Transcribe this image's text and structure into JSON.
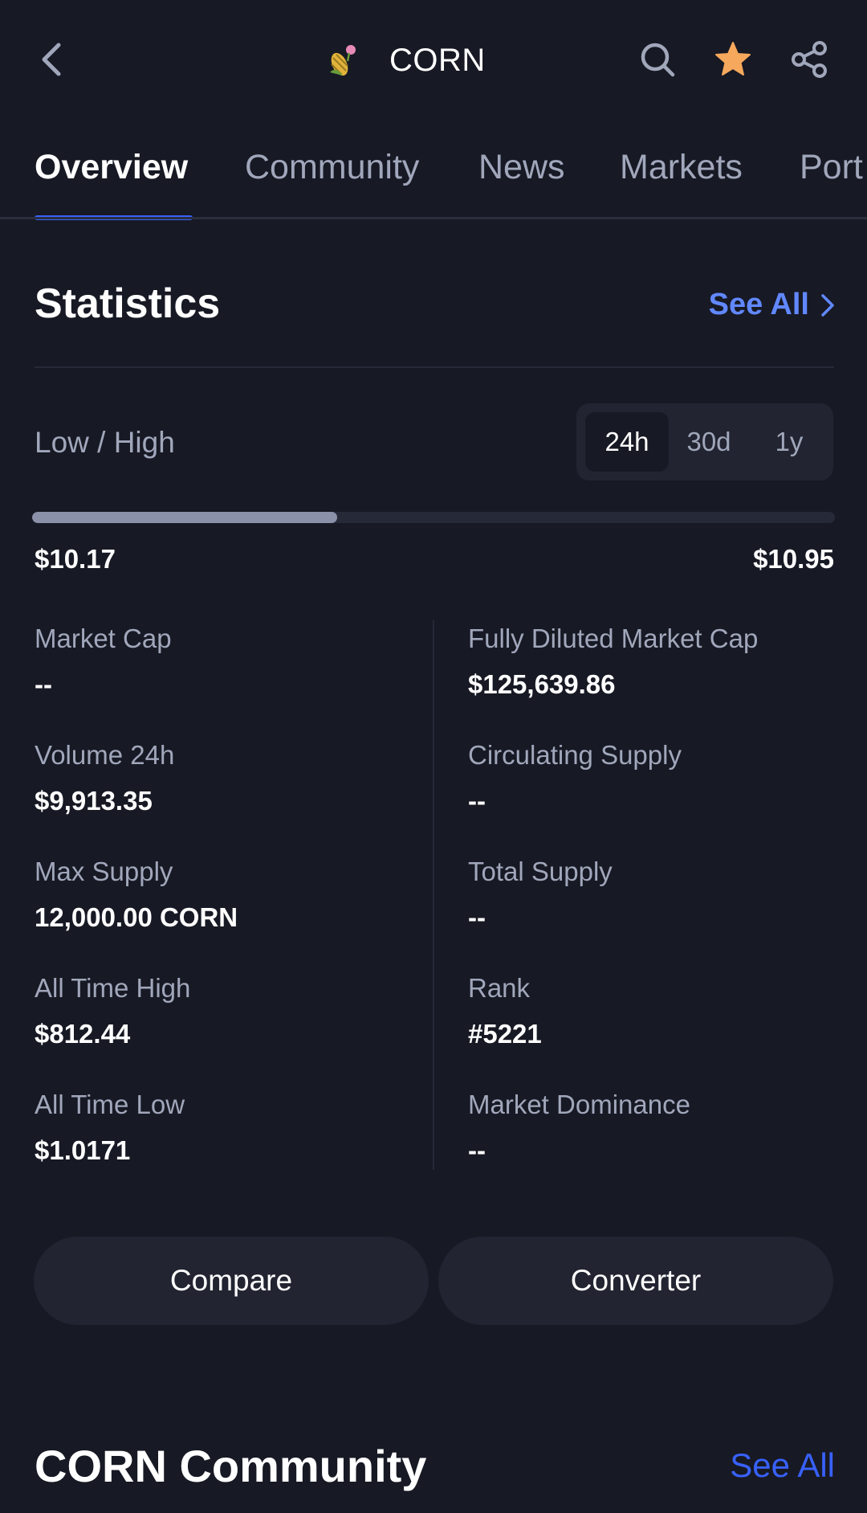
{
  "header": {
    "title": "CORN",
    "back_icon": "chevron-left-icon",
    "logo_icon": "corn-logo-icon",
    "search_icon": "search-icon",
    "favorite_icon": "star-icon",
    "share_icon": "share-icon",
    "favorite_color": "#f6a85c"
  },
  "tabs": [
    {
      "label": "Overview",
      "active": true
    },
    {
      "label": "Community",
      "active": false
    },
    {
      "label": "News",
      "active": false
    },
    {
      "label": "Markets",
      "active": false
    },
    {
      "label": "Port",
      "active": false
    }
  ],
  "statistics": {
    "title": "Statistics",
    "see_all_label": "See All",
    "low_high_label": "Low / High",
    "ranges": [
      {
        "label": "24h",
        "active": true
      },
      {
        "label": "30d",
        "active": false
      },
      {
        "label": "1y",
        "active": false
      }
    ],
    "low": "$10.17",
    "high": "$10.95",
    "range_progress": 0.38,
    "left_column": [
      {
        "label": "Market Cap",
        "value": "--"
      },
      {
        "label": "Volume 24h",
        "value": "$9,913.35"
      },
      {
        "label": "Max Supply",
        "value": "12,000.00 CORN"
      },
      {
        "label": "All Time High",
        "value": "$812.44"
      },
      {
        "label": "All Time Low",
        "value": "$1.0171"
      }
    ],
    "right_column": [
      {
        "label": "Fully Diluted Market Cap",
        "value": "$125,639.86"
      },
      {
        "label": "Circulating Supply",
        "value": "--"
      },
      {
        "label": "Total Supply",
        "value": "--"
      },
      {
        "label": "Rank",
        "value": "#5221"
      },
      {
        "label": "Market Dominance",
        "value": "--"
      }
    ]
  },
  "actions": {
    "compare_label": "Compare",
    "converter_label": "Converter"
  },
  "community": {
    "title": "CORN Community",
    "see_all_label": "See All"
  },
  "colors": {
    "background": "#171924",
    "accent": "#3861fb",
    "see_all_blue": "#6188ff",
    "muted_text": "#a1a7bb"
  }
}
